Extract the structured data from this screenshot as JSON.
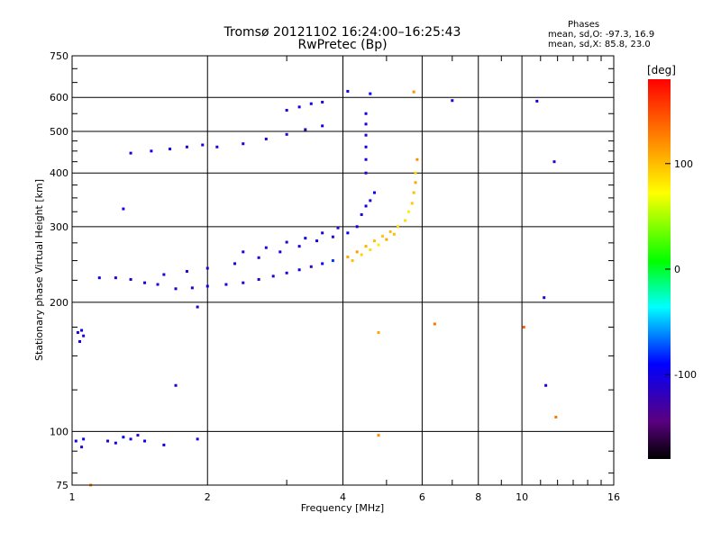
{
  "header": {
    "title_line1": "Tromsø 20121102 16:24:00–16:25:43",
    "title_line2": "RwPretec (Bp)"
  },
  "phase_stats": {
    "heading": "Phases",
    "line_o": "mean, sd,O: -97.3, 16.9",
    "line_x": "mean, sd,X:  85.8, 23.0"
  },
  "chart_data": {
    "type": "scatter",
    "title": "Tromsø 20121102 16:24:00–16:25:43 RwPretec (Bp)",
    "xlabel": "Frequency [MHz]",
    "ylabel": "Stationary phase Virtual Height [km]",
    "x_scale": "log",
    "y_scale": "log",
    "xlim": [
      1,
      16
    ],
    "ylim": [
      75,
      750
    ],
    "x_ticks": [
      1,
      2,
      4,
      6,
      8,
      10,
      16
    ],
    "y_ticks": [
      75,
      100,
      200,
      300,
      400,
      500,
      600,
      750
    ],
    "grid": true,
    "colorbar": {
      "label": "[deg]",
      "range": [
        -180,
        180
      ],
      "ticks": [
        100,
        0,
        -100
      ]
    },
    "points": [
      [
        1.03,
        170,
        -110
      ],
      [
        1.04,
        162,
        -105
      ],
      [
        1.05,
        172,
        -95
      ],
      [
        1.06,
        167,
        -112
      ],
      [
        1.02,
        95,
        -100
      ],
      [
        1.05,
        92,
        -108
      ],
      [
        1.06,
        96,
        -95
      ],
      [
        1.2,
        95,
        -110
      ],
      [
        1.25,
        94,
        -100
      ],
      [
        1.3,
        97,
        -90
      ],
      [
        1.35,
        96,
        -105
      ],
      [
        1.4,
        98,
        -115
      ],
      [
        1.45,
        95,
        -95
      ],
      [
        1.6,
        93,
        -100
      ],
      [
        1.9,
        96,
        -110
      ],
      [
        1.15,
        228,
        -100
      ],
      [
        1.25,
        228,
        -105
      ],
      [
        1.35,
        226,
        -110
      ],
      [
        1.45,
        222,
        -100
      ],
      [
        1.55,
        220,
        -115
      ],
      [
        1.7,
        215,
        -110
      ],
      [
        1.85,
        216,
        -105
      ],
      [
        2.0,
        218,
        -100
      ],
      [
        2.2,
        220,
        -110
      ],
      [
        2.4,
        222,
        -105
      ],
      [
        2.6,
        226,
        -115
      ],
      [
        2.8,
        230,
        -110
      ],
      [
        3.0,
        234,
        -105
      ],
      [
        3.2,
        238,
        -100
      ],
      [
        3.4,
        242,
        -120
      ],
      [
        3.6,
        246,
        -90
      ],
      [
        3.8,
        250,
        -80
      ],
      [
        1.6,
        232,
        -110
      ],
      [
        1.8,
        236,
        -105
      ],
      [
        2.0,
        240,
        -115
      ],
      [
        2.3,
        246,
        -100
      ],
      [
        2.6,
        254,
        -110
      ],
      [
        2.9,
        262,
        -105
      ],
      [
        3.2,
        270,
        -110
      ],
      [
        3.5,
        278,
        -100
      ],
      [
        3.8,
        284,
        -110
      ],
      [
        4.1,
        290,
        -95
      ],
      [
        2.4,
        262,
        -110
      ],
      [
        2.7,
        268,
        -105
      ],
      [
        3.0,
        276,
        -115
      ],
      [
        3.3,
        282,
        -100
      ],
      [
        3.6,
        290,
        -105
      ],
      [
        3.9,
        298,
        -110
      ],
      [
        4.1,
        255,
        110
      ],
      [
        4.3,
        262,
        115
      ],
      [
        4.5,
        270,
        105
      ],
      [
        4.7,
        278,
        100
      ],
      [
        4.9,
        285,
        95
      ],
      [
        5.1,
        292,
        100
      ],
      [
        5.3,
        300,
        90
      ],
      [
        5.5,
        310,
        85
      ],
      [
        5.6,
        325,
        80
      ],
      [
        5.7,
        340,
        95
      ],
      [
        5.75,
        360,
        100
      ],
      [
        5.8,
        380,
        110
      ],
      [
        5.8,
        400,
        90
      ],
      [
        5.85,
        430,
        120
      ],
      [
        4.2,
        250,
        100
      ],
      [
        4.4,
        258,
        90
      ],
      [
        4.6,
        265,
        85
      ],
      [
        4.8,
        272,
        80
      ],
      [
        5.0,
        280,
        110
      ],
      [
        5.2,
        288,
        100
      ],
      [
        4.3,
        300,
        -100
      ],
      [
        4.4,
        320,
        -105
      ],
      [
        4.5,
        335,
        -95
      ],
      [
        4.6,
        345,
        -110
      ],
      [
        4.7,
        360,
        -90
      ],
      [
        4.5,
        400,
        -110
      ],
      [
        4.5,
        430,
        -105
      ],
      [
        4.5,
        460,
        -100
      ],
      [
        4.5,
        490,
        -110
      ],
      [
        4.5,
        520,
        -105
      ],
      [
        4.5,
        550,
        -100
      ],
      [
        1.35,
        445,
        -110
      ],
      [
        1.5,
        450,
        -105
      ],
      [
        1.65,
        455,
        -100
      ],
      [
        1.8,
        460,
        -110
      ],
      [
        1.95,
        465,
        -105
      ],
      [
        2.1,
        460,
        -110
      ],
      [
        2.4,
        468,
        -100
      ],
      [
        2.7,
        480,
        -105
      ],
      [
        3.0,
        492,
        -110
      ],
      [
        3.3,
        505,
        -115
      ],
      [
        3.6,
        515,
        -100
      ],
      [
        3.0,
        560,
        -110
      ],
      [
        3.2,
        570,
        -105
      ],
      [
        3.4,
        580,
        -100
      ],
      [
        3.6,
        585,
        -110
      ],
      [
        4.1,
        620,
        -100
      ],
      [
        4.6,
        612,
        -95
      ],
      [
        5.75,
        618,
        120
      ],
      [
        7.0,
        590,
        -100
      ],
      [
        10.8,
        588,
        -100
      ],
      [
        11.8,
        425,
        -110
      ],
      [
        11.2,
        205,
        -110
      ],
      [
        11.3,
        128,
        -105
      ],
      [
        11.9,
        108,
        130
      ],
      [
        10.1,
        175,
        140
      ],
      [
        6.4,
        178,
        130
      ],
      [
        4.8,
        170,
        110
      ],
      [
        4.8,
        98,
        120
      ],
      [
        1.7,
        128,
        -110
      ],
      [
        1.9,
        195,
        -110
      ],
      [
        1.3,
        330,
        -105
      ],
      [
        1.1,
        75,
        120
      ]
    ]
  }
}
